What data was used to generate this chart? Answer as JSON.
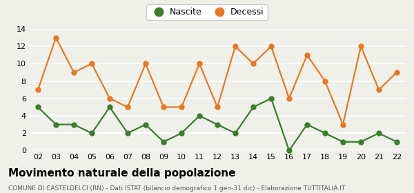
{
  "years": [
    "02",
    "03",
    "04",
    "05",
    "06",
    "07",
    "08",
    "09",
    "10",
    "11",
    "12",
    "13",
    "14",
    "15",
    "16",
    "17",
    "18",
    "19",
    "20",
    "21",
    "22"
  ],
  "nascite": [
    5,
    3,
    3,
    2,
    5,
    2,
    3,
    1,
    2,
    4,
    3,
    2,
    5,
    6,
    0,
    3,
    2,
    1,
    1,
    2,
    1
  ],
  "decessi": [
    7,
    13,
    9,
    10,
    6,
    5,
    10,
    5,
    5,
    10,
    5,
    12,
    10,
    12,
    6,
    11,
    8,
    3,
    12,
    7,
    9
  ],
  "nascite_color": "#3a7d2c",
  "decessi_color": "#e87820",
  "background_color": "#f0f0eb",
  "grid_color": "#ffffff",
  "title": "Movimento naturale della popolazione",
  "subtitle": "COMUNE DI CASTELDELCI (RN) - Dati ISTAT (bilancio demografico 1 gen-31 dic) - Elaborazione TUTTITALIA.IT",
  "ylim": [
    0,
    14
  ],
  "yticks": [
    0,
    2,
    4,
    6,
    8,
    10,
    12,
    14
  ],
  "legend_nascite": "Nascite",
  "legend_decessi": "Decessi",
  "marker": "o",
  "marker_size": 5,
  "linewidth": 1.6,
  "tick_fontsize": 8,
  "title_fontsize": 11,
  "subtitle_fontsize": 6.5,
  "legend_fontsize": 9
}
